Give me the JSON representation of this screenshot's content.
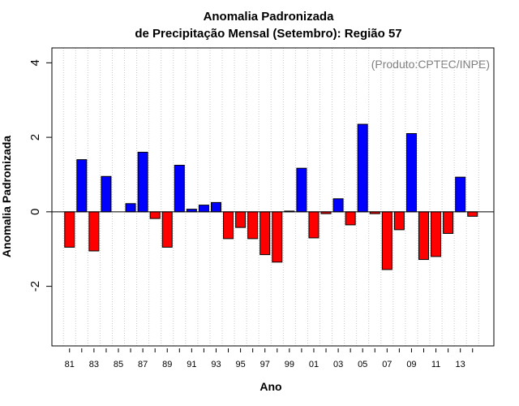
{
  "chart_data": {
    "type": "bar",
    "title": [
      "Anomalia Padronizada",
      "de Precipitação Mensal (Setembro): Região 57"
    ],
    "credit": "(Produto:CPTEC/INPE)",
    "xlabel": "Ano",
    "ylabel": "Anomalia Padronizada",
    "ylim": [
      -3.6,
      4.4
    ],
    "yticks": [
      "-2",
      "0",
      "2",
      "4"
    ],
    "grid": "vertical dotted",
    "categories": [
      "81",
      "82",
      "83",
      "84",
      "85",
      "86",
      "87",
      "88",
      "89",
      "90",
      "91",
      "92",
      "93",
      "94",
      "95",
      "96",
      "97",
      "98",
      "99",
      "00",
      "01",
      "02",
      "03",
      "04",
      "05",
      "06",
      "07",
      "08",
      "09",
      "10",
      "11",
      "12",
      "13",
      "14"
    ],
    "xtick_labels": [
      "81",
      "83",
      "85",
      "87",
      "89",
      "91",
      "93",
      "95",
      "97",
      "99",
      "01",
      "03",
      "05",
      "07",
      "09",
      "11",
      "13"
    ],
    "values": [
      -0.95,
      1.4,
      -1.05,
      0.95,
      0.0,
      0.22,
      1.6,
      -0.18,
      -0.95,
      1.25,
      0.07,
      0.18,
      0.25,
      -0.72,
      -0.42,
      -0.72,
      -1.15,
      -1.35,
      0.02,
      1.17,
      -0.7,
      -0.05,
      0.35,
      -0.35,
      2.35,
      -0.05,
      -1.55,
      -0.48,
      2.1,
      -1.28,
      -1.2,
      -0.58,
      0.93,
      -0.12
    ],
    "colors": {
      "positive": "#0000ff",
      "negative": "#ff0000"
    }
  }
}
